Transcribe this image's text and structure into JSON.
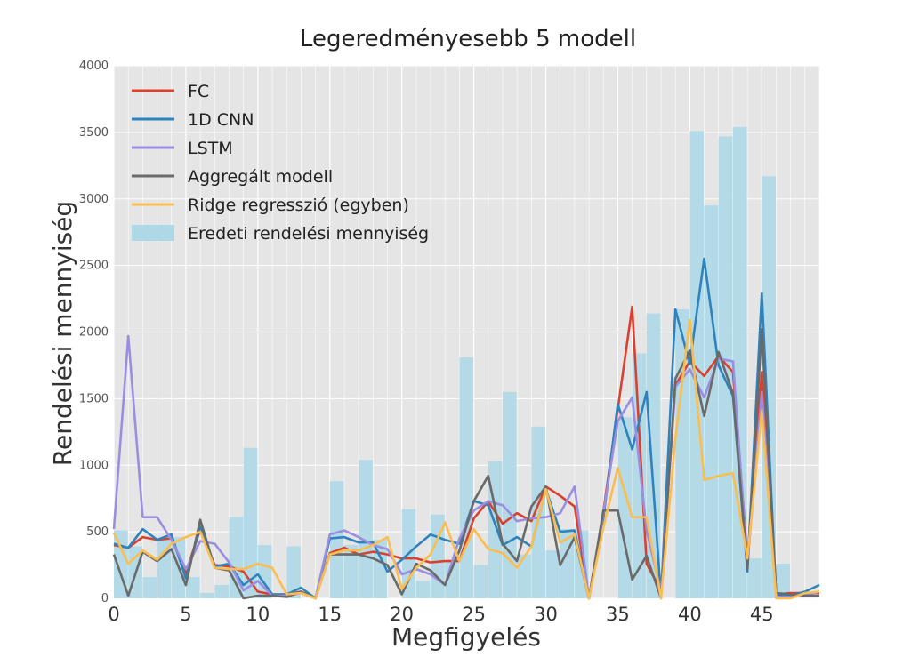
{
  "chart_data": {
    "type": "line",
    "title": "Legeredményesebb 5 modell",
    "xlabel": "Megfigyelés",
    "ylabel": "Rendelési mennyiség",
    "xlim": [
      0,
      49
    ],
    "ylim": [
      0,
      4000
    ],
    "xticks": [
      0,
      5,
      10,
      15,
      20,
      25,
      30,
      35,
      40,
      45
    ],
    "yticks": [
      0,
      500,
      1000,
      1500,
      2000,
      2500,
      3000,
      3500,
      4000
    ],
    "grid": true,
    "legend_position": "top-left",
    "x": [
      0,
      1,
      2,
      3,
      4,
      5,
      6,
      7,
      8,
      9,
      10,
      11,
      12,
      13,
      14,
      15,
      16,
      17,
      18,
      19,
      20,
      21,
      22,
      23,
      24,
      25,
      26,
      27,
      28,
      29,
      30,
      31,
      32,
      33,
      34,
      35,
      36,
      37,
      38,
      39,
      40,
      41,
      42,
      43,
      44,
      45,
      46,
      47,
      48,
      49
    ],
    "bars": {
      "name": "Eredeti rendelési mennyiség",
      "color": "#add8e6",
      "values": [
        510,
        390,
        160,
        450,
        460,
        160,
        40,
        100,
        610,
        1130,
        400,
        0,
        390,
        0,
        0,
        880,
        400,
        1040,
        440,
        0,
        670,
        130,
        630,
        280,
        1810,
        250,
        1030,
        1550,
        330,
        1290,
        360,
        520,
        510,
        0,
        0,
        1360,
        1840,
        2140,
        0,
        2170,
        3510,
        2950,
        3470,
        3540,
        300,
        3170,
        260,
        0,
        0,
        0
      ]
    },
    "series": [
      {
        "name": "FC",
        "color": "#d9412e",
        "values": [
          400,
          380,
          460,
          440,
          450,
          190,
          520,
          250,
          240,
          200,
          50,
          30,
          30,
          50,
          0,
          340,
          380,
          330,
          350,
          330,
          300,
          300,
          270,
          280,
          280,
          600,
          730,
          560,
          640,
          580,
          840,
          770,
          690,
          0,
          650,
          1420,
          2190,
          260,
          60,
          1600,
          1780,
          1670,
          1820,
          1700,
          300,
          1700,
          30,
          40,
          40,
          40
        ]
      },
      {
        "name": "1D CNN",
        "color": "#2f83bd",
        "values": [
          410,
          380,
          520,
          440,
          480,
          150,
          540,
          240,
          260,
          100,
          180,
          30,
          30,
          80,
          0,
          450,
          460,
          420,
          420,
          200,
          290,
          390,
          480,
          440,
          410,
          730,
          700,
          400,
          460,
          390,
          820,
          500,
          510,
          0,
          600,
          1460,
          1120,
          1550,
          10,
          2170,
          1760,
          2550,
          1750,
          1520,
          200,
          2290,
          20,
          20,
          50,
          100
        ]
      },
      {
        "name": "LSTM",
        "color": "#9b8ee0",
        "values": [
          520,
          1970,
          610,
          610,
          440,
          220,
          430,
          410,
          270,
          60,
          130,
          20,
          20,
          40,
          0,
          480,
          510,
          460,
          400,
          370,
          180,
          220,
          180,
          100,
          450,
          660,
          730,
          700,
          580,
          600,
          610,
          640,
          840,
          0,
          640,
          1330,
          1510,
          510,
          50,
          1590,
          1720,
          1510,
          1800,
          1780,
          250,
          1550,
          10,
          10,
          20,
          50
        ]
      },
      {
        "name": "Aggregált modell",
        "color": "#6a6a6a",
        "values": [
          330,
          20,
          350,
          280,
          370,
          100,
          590,
          230,
          210,
          0,
          20,
          20,
          10,
          50,
          0,
          330,
          330,
          330,
          300,
          250,
          30,
          260,
          210,
          100,
          360,
          730,
          920,
          410,
          280,
          690,
          840,
          250,
          460,
          0,
          660,
          660,
          140,
          320,
          0,
          1650,
          1860,
          1370,
          1850,
          1540,
          220,
          2020,
          40,
          30,
          20,
          20
        ]
      },
      {
        "name": "Ridge regresszió (egyben)",
        "color": "#fbbd50",
        "values": [
          490,
          260,
          360,
          290,
          410,
          460,
          500,
          230,
          220,
          220,
          260,
          230,
          30,
          40,
          0,
          330,
          360,
          360,
          400,
          460,
          70,
          230,
          330,
          570,
          280,
          520,
          370,
          340,
          230,
          390,
          820,
          420,
          480,
          0,
          530,
          980,
          610,
          610,
          0,
          1200,
          2090,
          890,
          920,
          940,
          300,
          1410,
          0,
          0,
          40,
          50
        ]
      }
    ]
  }
}
